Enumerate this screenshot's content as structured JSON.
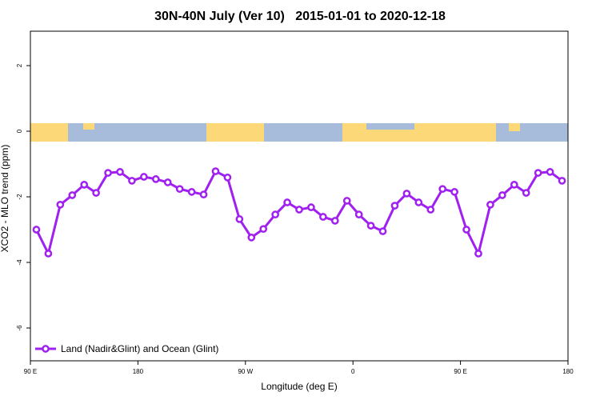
{
  "chart_data": {
    "type": "line",
    "title": "30N-40N July (Ver 10)   2015-01-01 to 2020-12-18",
    "x_label": "Longitude (deg E)",
    "y_label": "XCO2 - MLO trend (ppm)",
    "x": [
      95,
      105,
      115,
      125,
      135,
      145,
      155,
      165,
      175,
      185,
      195,
      205,
      215,
      225,
      235,
      245,
      255,
      265,
      275,
      285,
      295,
      305,
      315,
      325,
      335,
      345,
      355,
      365,
      375,
      385,
      395,
      405,
      415,
      425,
      435,
      445,
      455,
      465,
      475,
      485,
      495,
      505,
      515,
      525,
      535
    ],
    "series": [
      {
        "name": "Land (Nadir&Glint) and Ocean (Glint)",
        "color": "#a020f0",
        "values": [
          -3.0,
          -3.73,
          -2.24,
          -1.95,
          -1.63,
          -1.88,
          -1.27,
          -1.24,
          -1.51,
          -1.39,
          -1.46,
          -1.56,
          -1.76,
          -1.85,
          -1.93,
          -1.22,
          -1.41,
          -2.68,
          -3.24,
          -2.98,
          -2.54,
          -2.17,
          -2.39,
          -2.32,
          -2.61,
          -2.73,
          -2.12,
          -2.54,
          -2.88,
          -3.05,
          -2.27,
          -1.9,
          -2.17,
          -2.39,
          -1.76,
          -1.85,
          -3.0,
          -3.73,
          -2.24,
          -1.95,
          -1.63,
          -1.88,
          -1.27,
          -1.24,
          -1.51
        ]
      }
    ],
    "xlim": [
      90,
      540
    ],
    "xticks": [
      {
        "value": 90,
        "label": "90 E"
      },
      180,
      {
        "value": 270,
        "label": "90 W"
      },
      {
        "value": 360,
        "label": "0"
      },
      {
        "value": 450,
        "label": "90 E"
      },
      {
        "value": 540,
        "label": "180"
      }
    ],
    "ylim": [
      -7,
      3.05
    ],
    "yticks": [
      2,
      0,
      -2,
      -4,
      -6
    ],
    "legend": "bottomleft"
  }
}
